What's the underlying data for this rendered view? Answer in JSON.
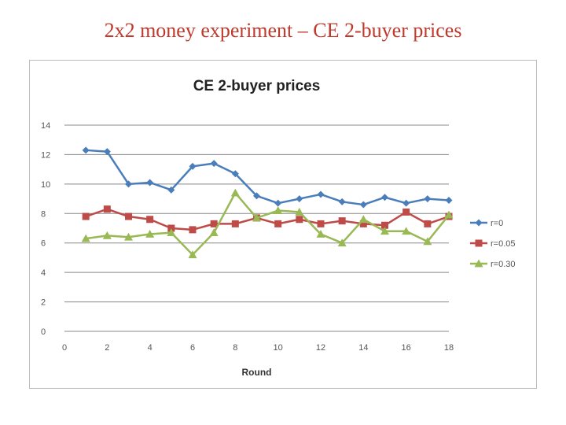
{
  "slide": {
    "title": "2x2 money experiment – CE 2-buyer prices"
  },
  "colors": {
    "title_red": "#c0392b",
    "series_blue": "#4a7ebb",
    "series_red": "#be4b48",
    "series_green": "#98b954",
    "grid": "#888888",
    "frame": "#bdbdbd"
  },
  "chart_data": {
    "type": "line",
    "title": "CE 2-buyer prices",
    "xlabel": "Round",
    "ylabel": "",
    "xlim": [
      0,
      18
    ],
    "ylim": [
      0,
      14
    ],
    "xticks": [
      0,
      2,
      4,
      6,
      8,
      10,
      12,
      14,
      16,
      18
    ],
    "yticks": [
      0,
      2,
      4,
      6,
      8,
      10,
      12,
      14
    ],
    "grid": "horizontal",
    "legend": "right",
    "x": [
      1,
      2,
      3,
      4,
      5,
      6,
      7,
      8,
      9,
      10,
      11,
      12,
      13,
      14,
      15,
      16,
      17,
      18
    ],
    "series": [
      {
        "name": "r=0",
        "marker": "diamond",
        "color": "#4a7ebb",
        "values": [
          12.3,
          12.2,
          10.0,
          10.1,
          9.6,
          11.2,
          11.4,
          10.7,
          9.2,
          8.7,
          9.0,
          9.3,
          8.8,
          8.6,
          9.1,
          8.7,
          9.0,
          8.9
        ]
      },
      {
        "name": "r=0.05",
        "marker": "square",
        "color": "#be4b48",
        "values": [
          7.8,
          8.3,
          7.8,
          7.6,
          7.0,
          6.9,
          7.3,
          7.3,
          7.7,
          7.3,
          7.6,
          7.3,
          7.5,
          7.3,
          7.2,
          8.1,
          7.3,
          7.8
        ]
      },
      {
        "name": "r=0.30",
        "marker": "triangle",
        "color": "#98b954",
        "values": [
          6.3,
          6.5,
          6.4,
          6.6,
          6.7,
          5.2,
          6.7,
          9.4,
          7.7,
          8.2,
          8.1,
          6.6,
          6.0,
          7.6,
          6.8,
          6.8,
          6.1,
          7.9
        ]
      }
    ]
  }
}
